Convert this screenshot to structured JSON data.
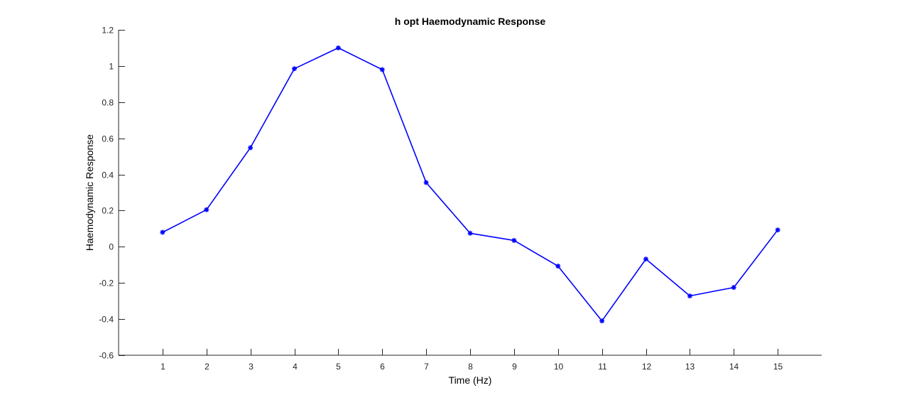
{
  "chart_data": {
    "type": "line",
    "title": "h opt Haemodynamic Response",
    "xlabel": "Time (Hz)",
    "ylabel": "Haemodynamic Response",
    "xlim": [
      0,
      16
    ],
    "ylim": [
      -0.6,
      1.2
    ],
    "xticks": [
      1,
      2,
      3,
      4,
      5,
      6,
      7,
      8,
      9,
      10,
      11,
      12,
      13,
      14,
      15
    ],
    "yticks": [
      -0.6,
      -0.4,
      -0.2,
      0,
      0.2,
      0.4,
      0.6,
      0.8,
      1,
      1.2
    ],
    "ytick_labels": [
      "-0.6",
      "-0.4",
      "-0.2",
      "0",
      "0.2",
      "0.4",
      "0.6",
      "0.8",
      "1",
      "1.2"
    ],
    "grid": false,
    "series": [
      {
        "color": "#0000ff",
        "marker": "asterisk",
        "x": [
          1,
          2,
          3,
          4,
          5,
          6,
          7,
          8,
          9,
          10,
          11,
          12,
          13,
          14,
          15
        ],
        "y": [
          0.08,
          0.205,
          0.548,
          0.985,
          1.1,
          0.98,
          0.355,
          0.075,
          0.035,
          -0.107,
          -0.41,
          -0.068,
          -0.272,
          -0.225,
          0.093
        ]
      }
    ]
  }
}
